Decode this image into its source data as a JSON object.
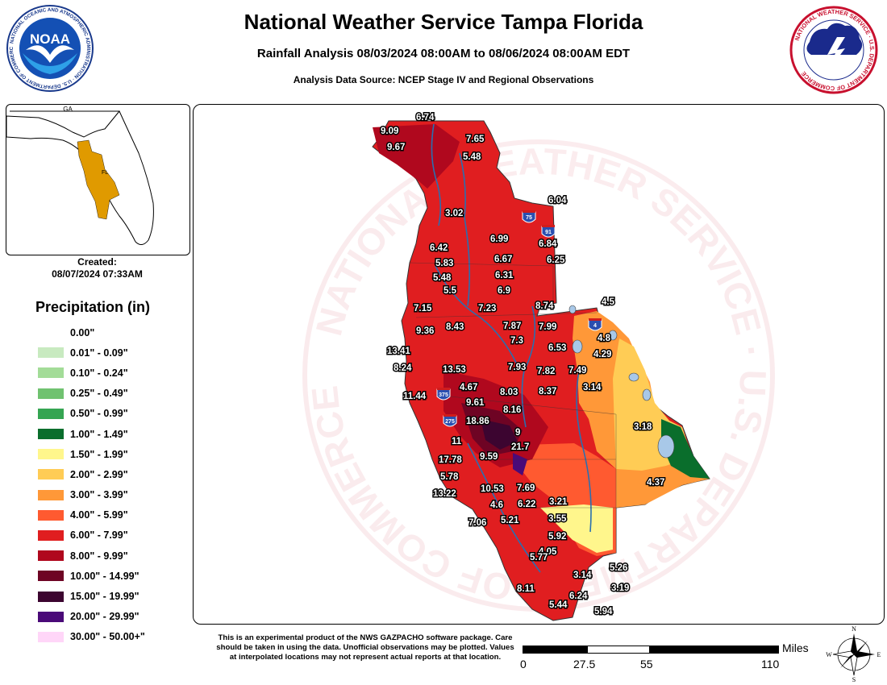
{
  "header": {
    "title": "National Weather Service Tampa Florida",
    "subtitle": "Rainfall Analysis 08/03/2024 08:00AM to 08/06/2024 08:00AM EDT",
    "source": "Analysis Data Source: NCEP Stage IV and Regional Observations"
  },
  "inset": {
    "label_ga": "GA",
    "label_fl": "FL"
  },
  "created": {
    "label": "Created:",
    "value": "08/07/2024 07:33AM"
  },
  "legend": {
    "title": "Precipitation (in)",
    "items": [
      {
        "label": "0.00\"",
        "color": "#ffffff"
      },
      {
        "label": "0.01\" - 0.09\"",
        "color": "#c8eac0"
      },
      {
        "label": "0.10\" - 0.24\"",
        "color": "#a3dc98"
      },
      {
        "label": "0.25\" - 0.49\"",
        "color": "#70c270"
      },
      {
        "label": "0.50\" - 0.99\"",
        "color": "#35a552"
      },
      {
        "label": "1.00\" - 1.49\"",
        "color": "#0a6e2c"
      },
      {
        "label": "1.50\" - 1.99\"",
        "color": "#fff68c"
      },
      {
        "label": "2.00\" - 2.99\"",
        "color": "#ffcc55"
      },
      {
        "label": "3.00\" - 3.99\"",
        "color": "#ff9838"
      },
      {
        "label": "4.00\" - 5.99\"",
        "color": "#ff5a30"
      },
      {
        "label": "6.00\" - 7.99\"",
        "color": "#e01e20"
      },
      {
        "label": "8.00\" - 9.99\"",
        "color": "#b0081e"
      },
      {
        "label": "10.00\" - 14.99\"",
        "color": "#6e0424"
      },
      {
        "label": "15.00\" - 19.99\"",
        "color": "#3c0530"
      },
      {
        "label": "20.00\" - 29.99\"",
        "color": "#4a0a78"
      },
      {
        "label": "30.00\" - 50.00+\"",
        "color": "#ffd6f8"
      }
    ]
  },
  "highways": [
    "75",
    "91",
    "4",
    "375",
    "275"
  ],
  "observations": [
    "6.74",
    "9.09",
    "9.67",
    "7.65",
    "5.48",
    "6.04",
    "3.02",
    "6.99",
    "6.84",
    "6.42",
    "6.67",
    "6.25",
    "5.83",
    "6.31",
    "5.48",
    "5.5",
    "6.9",
    "4.5",
    "7.15",
    "7.23",
    "8.74",
    "9.36",
    "8.43",
    "7.87",
    "7.99",
    "13.41",
    "7.3",
    "4.8",
    "6.53",
    "4.29",
    "8.24",
    "13.53",
    "7.93",
    "7.82",
    "7.49",
    "4.67",
    "11.44",
    "8.03",
    "8.37",
    "3.14",
    "9.61",
    "8.16",
    "18.86",
    "9",
    "3.18",
    "11",
    "21.7",
    "17.78",
    "9.59",
    "5.78",
    "4.37",
    "13.22",
    "10.53",
    "7.69",
    "4.6",
    "6.22",
    "3.21",
    "3.55",
    "7.06",
    "5.21",
    "5.92",
    "4.05",
    "5.77",
    "3.14",
    "5.26",
    "8.11",
    "3.19",
    "6.24",
    "5.44",
    "5.94"
  ],
  "disclaimer": "This is an experimental product of the NWS GAZPACHO software package. Care should be taken in using the data. Unofficial observations may be plotted. Values at interpolated locations may not represent actual reports at that location.",
  "scale": {
    "unit": "Miles",
    "ticks": [
      "0",
      "27.5",
      "55",
      "110"
    ]
  },
  "compass": {
    "n": "N",
    "s": "S",
    "e": "E",
    "w": "W"
  },
  "logos": {
    "noaa_text": "NOAA",
    "noaa_ring": "NATIONAL OCEANIC AND ATMOSPHERIC ADMINISTRATION · U.S. DEPARTMENT OF COMMERCE",
    "nws_ring": "NATIONAL WEATHER SERVICE · U.S. DEPARTMENT OF COMMERCE",
    "watermark": "NATIONAL WEATHER SERVICE · U.S. DEPARTMENT OF COMMERCE"
  }
}
